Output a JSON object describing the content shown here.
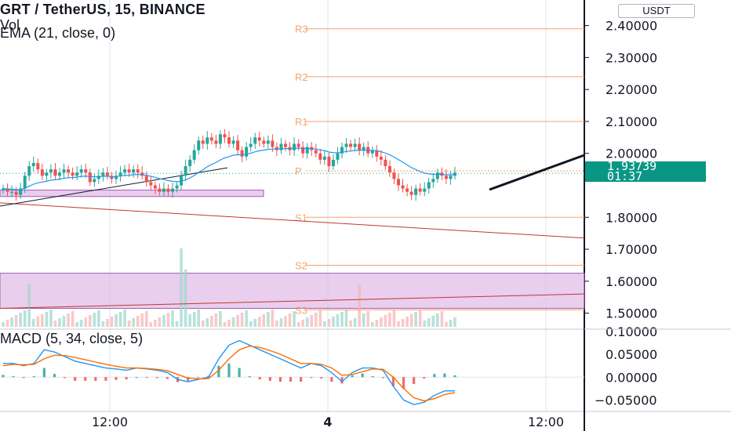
{
  "header": {
    "title": "GRT / TetherUS, 15, BINANCE",
    "vol_label": "Vol",
    "ema_label": "EMA (21, close, 0)",
    "macd_label": "MACD (5, 34, close, 5)"
  },
  "currency_button": "USDT",
  "price_tag": {
    "price": "1.93739",
    "countdown": "01:37",
    "color": "#0a9684"
  },
  "colors": {
    "up": "#26a69a",
    "down": "#ef5350",
    "ema": "#2196f3",
    "pivot": "#f7a26b",
    "zone": "#e1bee7",
    "zone_border": "#a259b8",
    "trendline": "#c0392b",
    "macd": "#2196f3",
    "signal": "#ff6d00"
  },
  "chart_data": [
    {
      "type": "candlestick",
      "title": "GRT / TetherUS, 15, BINANCE",
      "ylim": [
        1.45,
        2.48
      ],
      "y_ticks": [
        "2.40000",
        "2.30000",
        "2.20000",
        "2.10000",
        "2.00000",
        "1.80000",
        "1.70000",
        "1.60000",
        "1.50000"
      ],
      "x_ticks": [
        "12:00",
        "4",
        "12:00"
      ],
      "pivot_levels": [
        {
          "label": "R3",
          "value": 2.39
        },
        {
          "label": "R2",
          "value": 2.24
        },
        {
          "label": "R1",
          "value": 2.1
        },
        {
          "label": "P",
          "value": 1.945
        },
        {
          "label": "S1",
          "value": 1.8
        },
        {
          "label": "S2",
          "value": 1.65
        },
        {
          "label": "S3",
          "value": 1.51
        }
      ],
      "zones": [
        {
          "from": 1.865,
          "to": 1.885
        },
        {
          "from": 1.515,
          "to": 1.625
        }
      ],
      "last_price": 1.93739,
      "close": [
        1.89,
        1.88,
        1.88,
        1.87,
        1.89,
        1.93,
        1.96,
        1.97,
        1.95,
        1.93,
        1.94,
        1.95,
        1.93,
        1.94,
        1.95,
        1.94,
        1.93,
        1.94,
        1.95,
        1.94,
        1.91,
        1.92,
        1.93,
        1.94,
        1.93,
        1.92,
        1.93,
        1.94,
        1.95,
        1.94,
        1.95,
        1.94,
        1.93,
        1.91,
        1.9,
        1.89,
        1.88,
        1.89,
        1.88,
        1.89,
        1.9,
        1.93,
        1.96,
        1.98,
        2.01,
        2.04,
        2.03,
        2.05,
        2.04,
        2.03,
        2.06,
        2.05,
        2.03,
        2.04,
        2.01,
        1.99,
        2.02,
        2.03,
        2.05,
        2.04,
        2.03,
        2.04,
        2.02,
        2.01,
        2.03,
        2.02,
        2.01,
        2.03,
        2.02,
        2.0,
        2.02,
        2.01,
        2.0,
        1.98,
        1.99,
        1.96,
        1.98,
        2.0,
        2.02,
        2.03,
        2.02,
        2.03,
        2.01,
        2.02,
        2.0,
        2.01,
        1.99,
        1.98,
        1.96,
        1.94,
        1.92,
        1.9,
        1.89,
        1.88,
        1.87,
        1.89,
        1.88,
        1.89,
        1.91,
        1.92,
        1.94,
        1.93,
        1.92,
        1.93,
        1.94
      ]
    },
    {
      "type": "line",
      "title": "MACD (5, 34, close, 5)",
      "ylim": [
        -0.075,
        0.105
      ],
      "y_ticks": [
        "0.10000",
        "0.05000",
        "0.00000",
        "−0.05000"
      ],
      "series": [
        {
          "name": "MACD",
          "values": [
            0.03,
            0.03,
            0.025,
            0.03,
            0.06,
            0.055,
            0.045,
            0.035,
            0.03,
            0.025,
            0.02,
            0.018,
            0.015,
            0.02,
            0.018,
            0.015,
            0.01,
            -0.005,
            -0.01,
            -0.005,
            0.0,
            0.04,
            0.07,
            0.08,
            0.07,
            0.06,
            0.05,
            0.04,
            0.03,
            0.02,
            0.03,
            0.025,
            0.01,
            -0.01,
            0.01,
            0.02,
            0.02,
            0.015,
            -0.02,
            -0.05,
            -0.06,
            -0.055,
            -0.04,
            -0.03,
            -0.03
          ]
        },
        {
          "name": "Signal",
          "values": [
            0.025,
            0.028,
            0.027,
            0.028,
            0.04,
            0.048,
            0.047,
            0.043,
            0.038,
            0.033,
            0.028,
            0.024,
            0.02,
            0.02,
            0.019,
            0.017,
            0.014,
            0.006,
            -0.002,
            -0.004,
            -0.003,
            0.015,
            0.04,
            0.06,
            0.068,
            0.065,
            0.058,
            0.05,
            0.04,
            0.03,
            0.03,
            0.028,
            0.02,
            0.004,
            0.006,
            0.012,
            0.018,
            0.017,
            0.0,
            -0.025,
            -0.045,
            -0.052,
            -0.047,
            -0.038,
            -0.034
          ]
        }
      ]
    }
  ]
}
